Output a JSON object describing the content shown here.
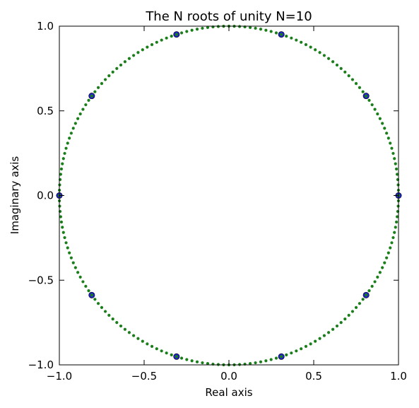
{
  "chart_data": {
    "type": "scatter",
    "title": "The N roots of unity N=10",
    "xlabel": "Real axis",
    "ylabel": "Imaginary axis",
    "xlim": [
      -1.0,
      1.0
    ],
    "ylim": [
      -1.0,
      1.0
    ],
    "xticks": [
      -1.0,
      -0.5,
      0.0,
      0.5,
      1.0
    ],
    "yticks": [
      -1.0,
      -0.5,
      0.0,
      0.5,
      1.0
    ],
    "xtick_labels": [
      "−1.0",
      "−0.5",
      "0.0",
      "0.5",
      "1.0"
    ],
    "ytick_labels": [
      "−1.0",
      "−0.5",
      "0.0",
      "0.5",
      "1.0"
    ],
    "grid": false,
    "legend": "none",
    "series": [
      {
        "marker": "circle",
        "color": "#1f1fcc",
        "x": [
          1.0,
          0.809,
          0.309,
          -0.309,
          -0.809,
          -1.0,
          -0.809,
          -0.309,
          0.309,
          0.809
        ],
        "y": [
          0.0,
          0.588,
          0.951,
          0.951,
          0.588,
          0.0,
          -0.588,
          -0.951,
          -0.951,
          -0.588
        ]
      },
      {
        "marker": "dot",
        "color": "#1a7f1a",
        "parametric": "unit-circle",
        "point_count": 200
      }
    ]
  }
}
